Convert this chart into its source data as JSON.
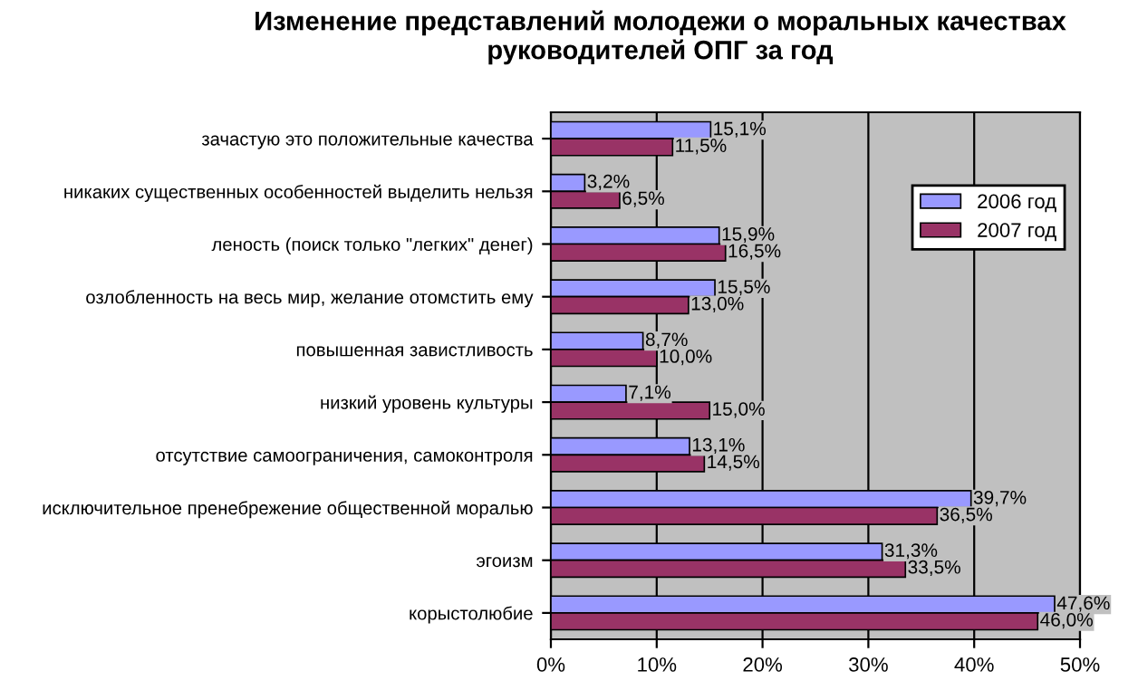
{
  "chart_data": {
    "type": "bar",
    "orientation": "horizontal",
    "title": "Изменение представлений молодежи о моральных качествах руководителей ОПГ за год",
    "categories": [
      "зачастую это положительные качества",
      "никаких существенных особенностей выделить нельзя",
      "леность (поиск только \"легких\" денег)",
      "озлобленность на весь мир, желание отомстить ему",
      "повышенная завистливость",
      "низкий уровень культуры",
      "отсутствие самоограничения, самоконтроля",
      "исключительное пренебрежение общественной моралью",
      "эгоизм",
      "корыстолюбие"
    ],
    "series": [
      {
        "name": "2006 год",
        "color": "#9999ff",
        "values": [
          15.1,
          3.2,
          15.9,
          15.5,
          8.7,
          7.1,
          13.1,
          39.7,
          31.3,
          47.6
        ],
        "value_labels": [
          "15,1%",
          "3,2%",
          "15,9%",
          "15,5%",
          "8,7%",
          "7,1%",
          "13,1%",
          "39,7%",
          "31,3%",
          "47,6%"
        ]
      },
      {
        "name": "2007 год",
        "color": "#993366",
        "values": [
          11.5,
          6.5,
          16.5,
          13.0,
          10.0,
          15.0,
          14.5,
          36.5,
          33.5,
          46.0
        ],
        "value_labels": [
          "11,5%",
          "6,5%",
          "16,5%",
          "13,0%",
          "10,0%",
          "15,0%",
          "14,5%",
          "36,5%",
          "33,5%",
          "46,0%"
        ]
      }
    ],
    "xlim": [
      0,
      50
    ],
    "xticks": [
      {
        "value": 0,
        "label": "0%"
      },
      {
        "value": 10,
        "label": "10%"
      },
      {
        "value": 20,
        "label": "20%"
      },
      {
        "value": 30,
        "label": "30%"
      },
      {
        "value": 40,
        "label": "40%"
      },
      {
        "value": 50,
        "label": "50%"
      }
    ],
    "grid": "x",
    "legend": "top right"
  }
}
